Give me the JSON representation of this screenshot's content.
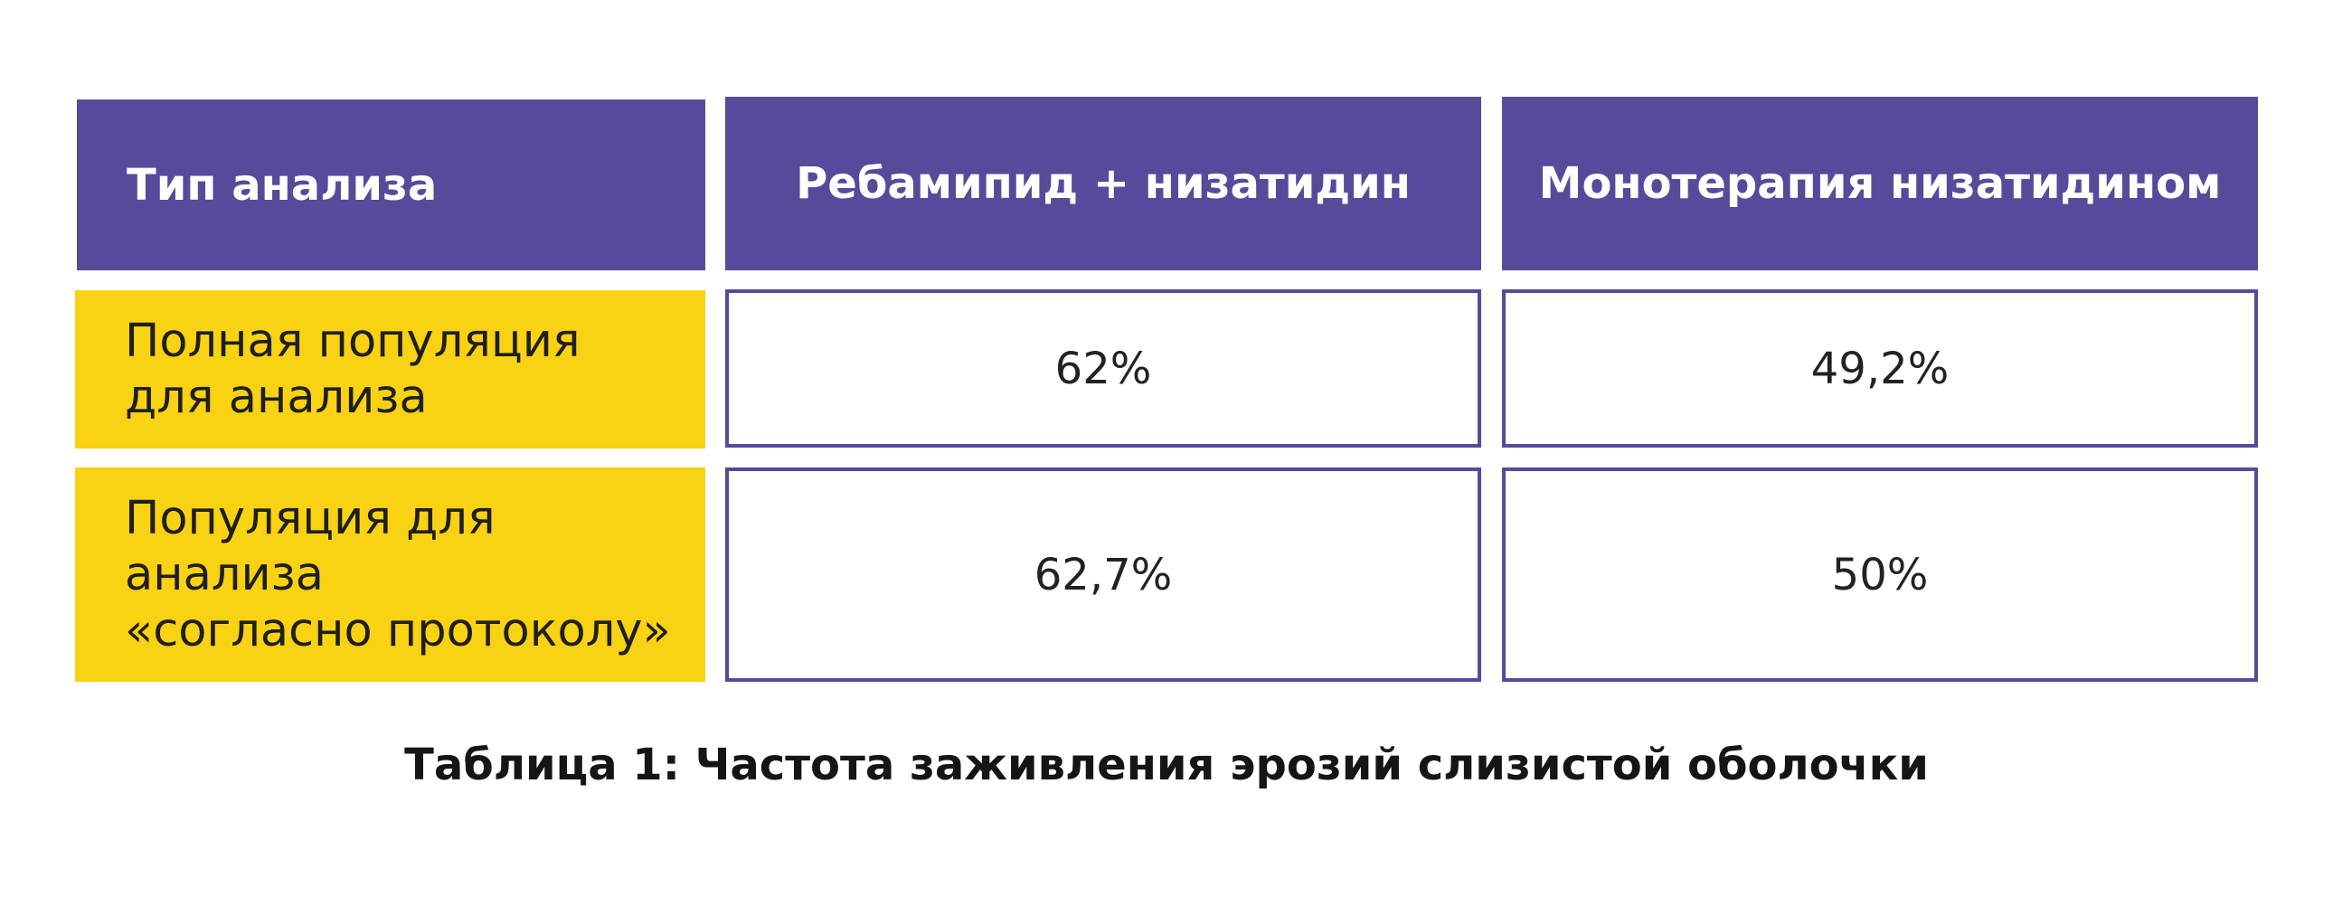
{
  "table": {
    "headers": [
      "Тип анализа",
      "Ребамипид + низатидин",
      "Монотерапия низатидином"
    ],
    "rows": [
      {
        "label": "Полная популяция\nдля анализа",
        "values": [
          "62%",
          "49,2%"
        ]
      },
      {
        "label": "Популяция для\nанализа\n«согласно протоколу»",
        "values": [
          "62,7%",
          "50%"
        ]
      }
    ]
  },
  "caption": "Таблица 1: Частота заживления эрозий слизистой оболочки",
  "colors": {
    "header_bg": "#574a9a",
    "row_label_bg": "#f8d213",
    "border": "#574a9a"
  }
}
